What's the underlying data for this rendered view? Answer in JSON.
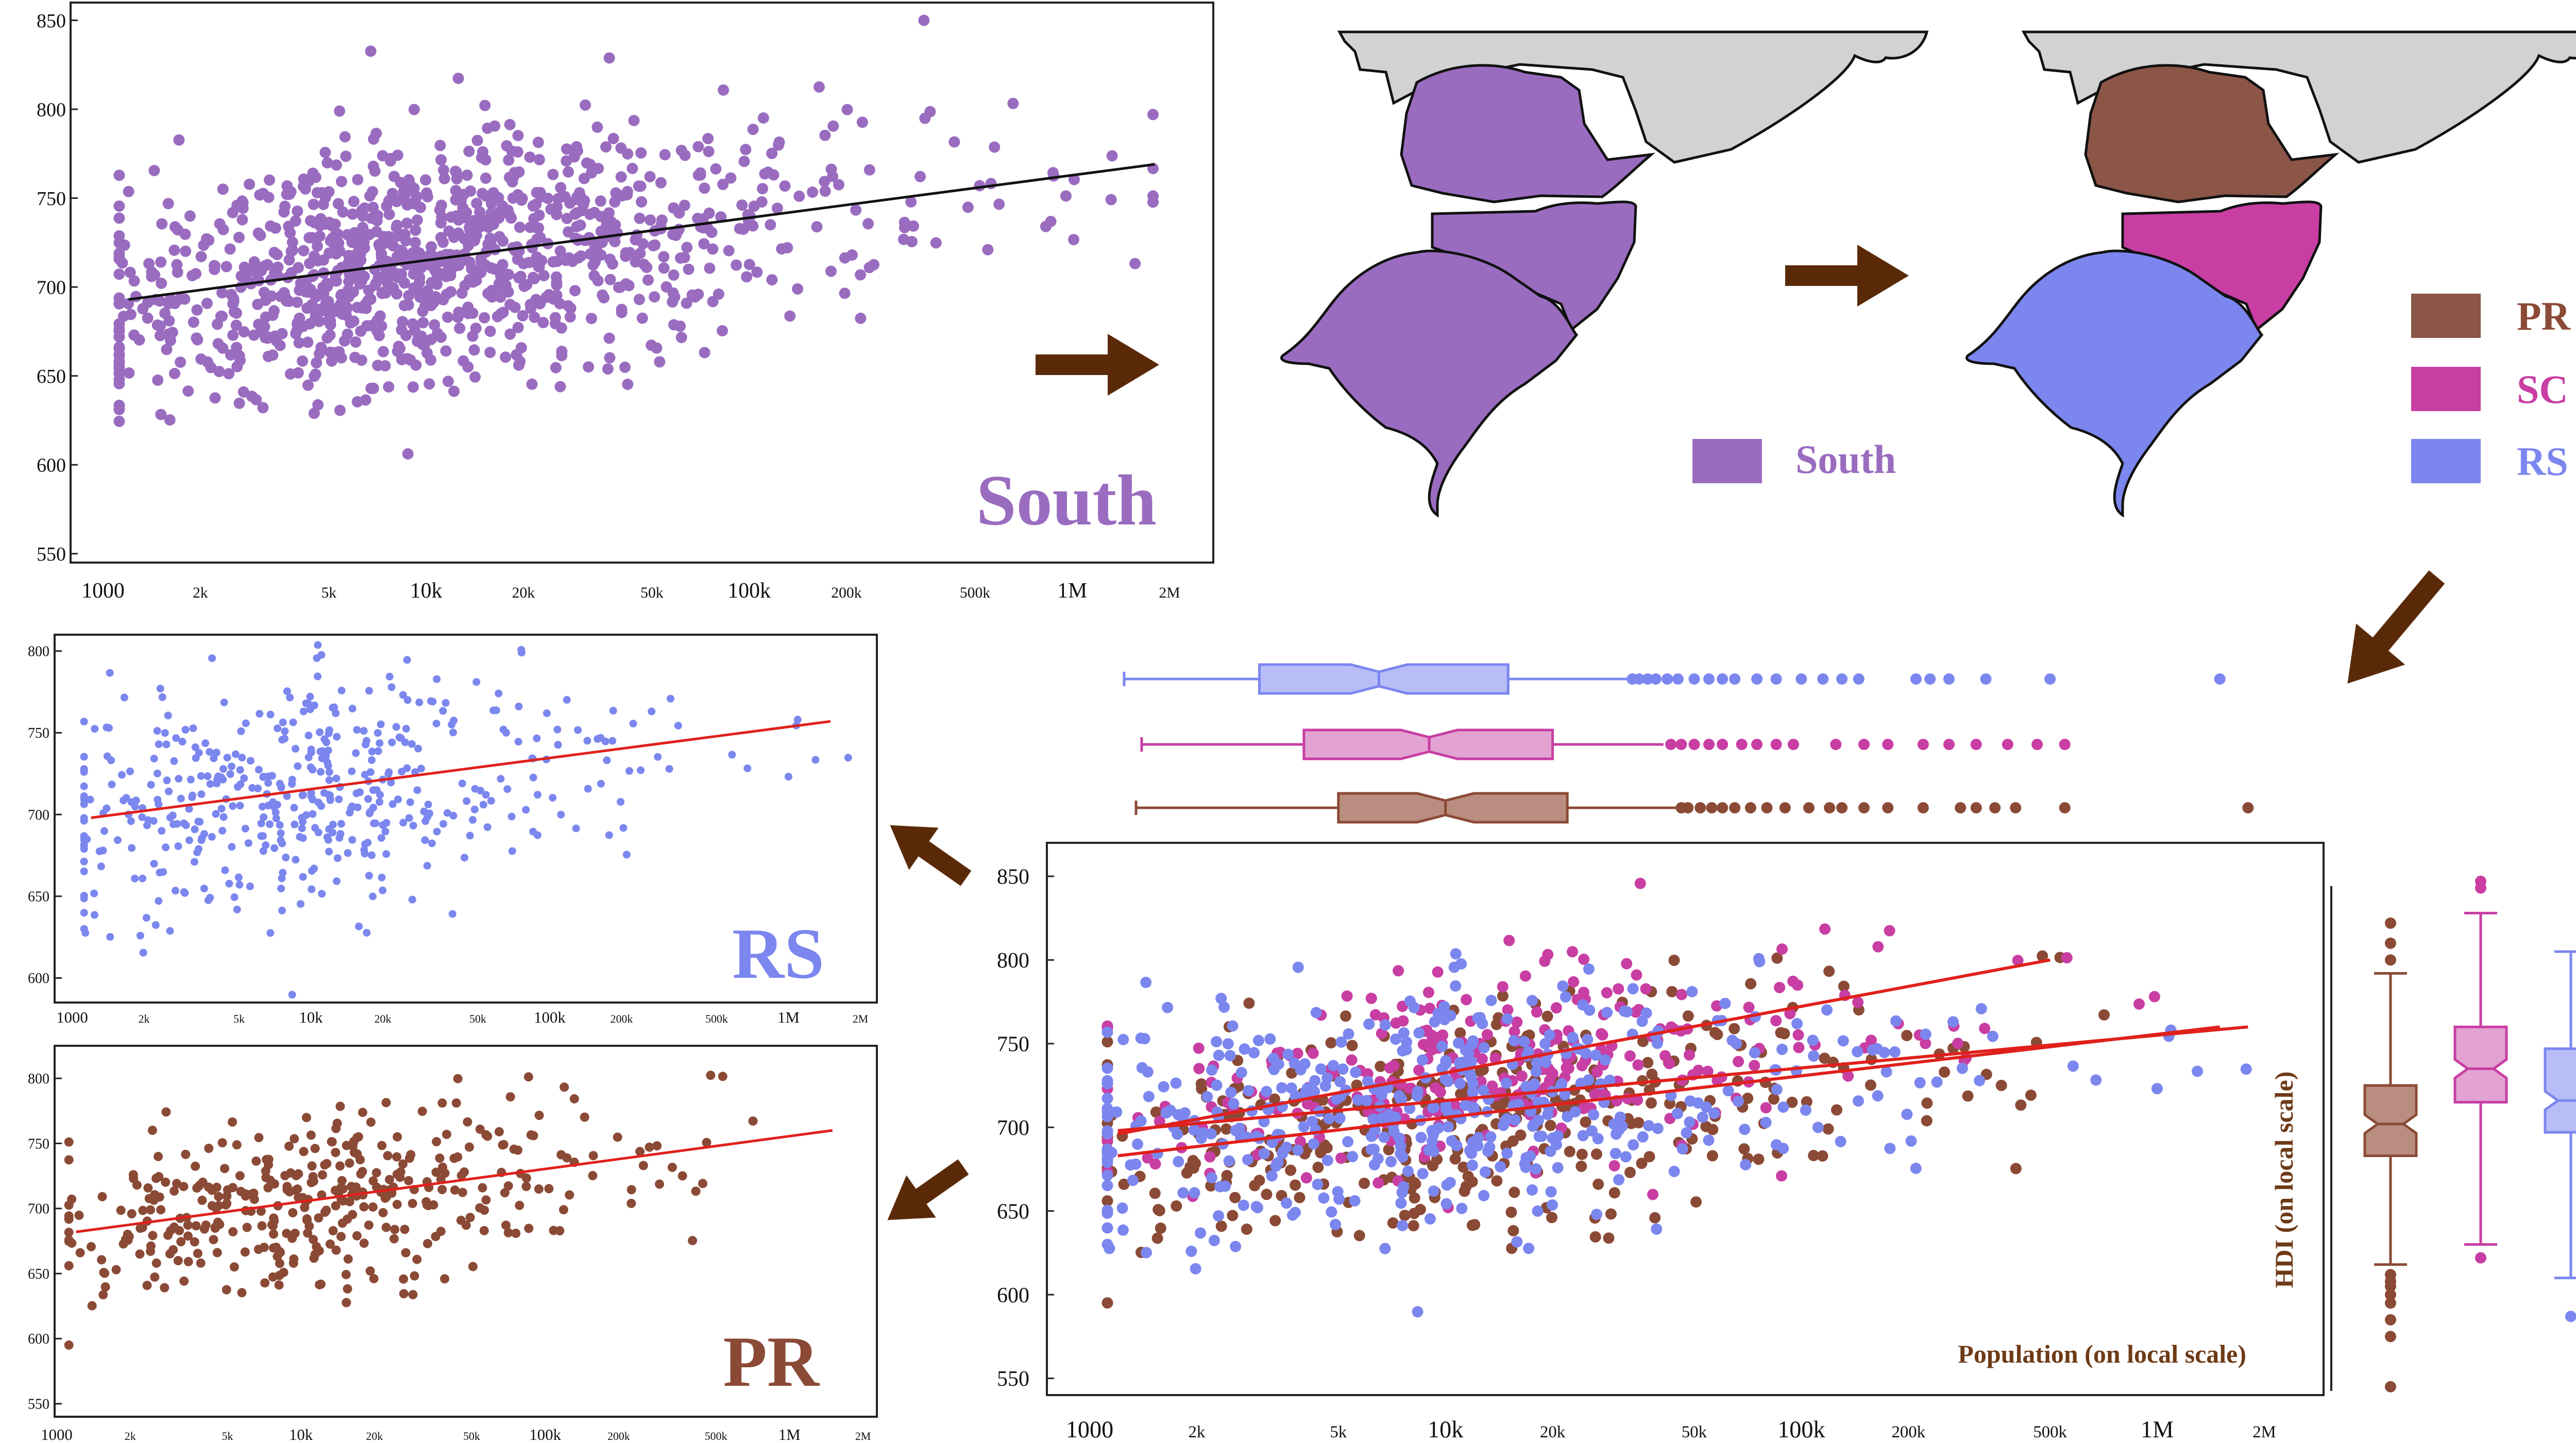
{
  "colors": {
    "south": "#9a6cc0",
    "pr": "#8b4a36",
    "pr_fill": "#b98d7f",
    "sc": "#c83ea3",
    "sc_fill": "#e2a3d2",
    "rs": "#7b86ee",
    "rs_fill": "#b9bdf7",
    "black_fit": "#111111",
    "red_fit": "#e0201b",
    "arrow": "#5a2a08",
    "map_gray": "#d2d2d2"
  },
  "x_ticks": [
    "1000",
    "2k",
    "5k",
    "10k",
    "20k",
    "50k",
    "100k",
    "200k",
    "500k",
    "1M",
    "2M"
  ],
  "x_tick_values": [
    1000,
    2000,
    5000,
    10000,
    20000,
    50000,
    100000,
    200000,
    500000,
    1000000,
    2000000
  ],
  "maps": {
    "south_legend": "South",
    "state_legend": [
      "PR",
      "SC",
      "RS"
    ]
  },
  "chart_data": [
    {
      "id": "south",
      "type": "scatter",
      "title": "South",
      "xscale": "log",
      "xlim": [
        1000,
        2000000
      ],
      "ylim": [
        545,
        860
      ],
      "yticks": [
        550,
        600,
        650,
        700,
        750,
        800,
        850
      ],
      "fit": {
        "x": [
          1200,
          1800000
        ],
        "y": [
          693,
          769
        ]
      },
      "series": [
        {
          "color": "south",
          "cloud": {
            "seed": 11,
            "n": 1100,
            "x_center": 9000,
            "y_center": 712,
            "y_sd": 33,
            "slope": 24
          }
        }
      ]
    },
    {
      "id": "rs",
      "type": "scatter",
      "title": "RS",
      "xscale": "log",
      "xlim": [
        1000,
        2000000
      ],
      "ylim": [
        585,
        810
      ],
      "yticks": [
        600,
        650,
        700,
        750,
        800
      ],
      "fit": {
        "x": [
          1200,
          1500000
        ],
        "y": [
          698,
          757
        ]
      },
      "series": [
        {
          "color": "rs",
          "cloud": {
            "seed": 23,
            "n": 480,
            "x_center": 7000,
            "y_center": 712,
            "y_sd": 34,
            "slope": 18
          }
        }
      ]
    },
    {
      "id": "pr",
      "type": "scatter",
      "title": "PR",
      "xscale": "log",
      "xlim": [
        1000,
        2000000
      ],
      "ylim": [
        540,
        825
      ],
      "yticks": [
        550,
        600,
        650,
        700,
        750,
        800
      ],
      "fit": {
        "x": [
          1200,
          1500000
        ],
        "y": [
          682,
          760
        ]
      },
      "series": [
        {
          "color": "pr",
          "cloud": {
            "seed": 37,
            "n": 390,
            "x_center": 9500,
            "y_center": 704,
            "y_sd": 34,
            "slope": 26
          }
        }
      ]
    },
    {
      "id": "combined",
      "type": "scatter",
      "xlabel": "Population (on local scale)",
      "ylabel": "HDI (on local scale)",
      "xscale": "log",
      "xlim": [
        1000,
        2000000
      ],
      "ylim": [
        540,
        870
      ],
      "yticks": [
        550,
        600,
        650,
        700,
        750,
        800,
        850
      ],
      "fits": [
        {
          "color": "red_fit",
          "x": [
            1200,
            500000
          ],
          "y": [
            696,
            800
          ]
        },
        {
          "color": "red_fit",
          "x": [
            1200,
            1800000
          ],
          "y": [
            698,
            760
          ]
        },
        {
          "color": "red_fit",
          "x": [
            1200,
            1500000
          ],
          "y": [
            683,
            760
          ]
        }
      ],
      "series": [
        {
          "color": "pr",
          "cloud": {
            "seed": 37,
            "n": 390,
            "x_center": 9500,
            "y_center": 704,
            "y_sd": 34,
            "slope": 26
          }
        },
        {
          "color": "sc",
          "cloud": {
            "seed": 51,
            "n": 290,
            "x_center": 11000,
            "y_center": 733,
            "y_sd": 28,
            "slope": 30
          }
        },
        {
          "color": "rs",
          "cloud": {
            "seed": 23,
            "n": 480,
            "x_center": 7000,
            "y_center": 712,
            "y_sd": 34,
            "slope": 18
          }
        }
      ]
    },
    {
      "id": "population_boxplots",
      "type": "box",
      "orientation": "horizontal",
      "xscale": "log",
      "boxes": [
        {
          "color": "rs",
          "whisker_low": 1250,
          "q1": 3000,
          "median": 6500,
          "q3": 15000,
          "whisker_high": 33000,
          "outliers": [
            33500,
            35000,
            37000,
            39000,
            42000,
            45000,
            50000,
            55000,
            60000,
            65000,
            75000,
            85000,
            100000,
            115000,
            130000,
            145000,
            210000,
            230000,
            260000,
            330000,
            500000,
            1500000
          ]
        },
        {
          "color": "sc",
          "whisker_low": 1400,
          "q1": 4000,
          "median": 9000,
          "q3": 20000,
          "whisker_high": 41000,
          "outliers": [
            43000,
            46000,
            50000,
            55000,
            60000,
            68000,
            75000,
            85000,
            95000,
            125000,
            150000,
            175000,
            220000,
            260000,
            310000,
            380000,
            460000,
            550000
          ]
        },
        {
          "color": "pr",
          "whisker_low": 1350,
          "q1": 5000,
          "median": 10000,
          "q3": 22000,
          "whisker_high": 45000,
          "outliers": [
            46000,
            48000,
            52000,
            56000,
            60000,
            65000,
            72000,
            80000,
            90000,
            105000,
            120000,
            130000,
            150000,
            175000,
            220000,
            280000,
            310000,
            350000,
            400000,
            550000,
            1800000
          ]
        }
      ]
    },
    {
      "id": "hdi_boxplots",
      "type": "box",
      "orientation": "vertical",
      "boxes": [
        {
          "color": "pr",
          "whisker_low": 618,
          "q1": 683,
          "median": 702,
          "q3": 725,
          "whisker_high": 792,
          "outliers": [
            545,
            575,
            585,
            595,
            600,
            605,
            608,
            612,
            800,
            810,
            822
          ]
        },
        {
          "color": "sc",
          "whisker_low": 630,
          "q1": 715,
          "median": 735,
          "q3": 760,
          "whisker_high": 828,
          "outliers": [
            622,
            843,
            847
          ]
        },
        {
          "color": "rs",
          "whisker_low": 610,
          "q1": 697,
          "median": 716,
          "q3": 747,
          "whisker_high": 805,
          "outliers": [
            587
          ]
        }
      ]
    }
  ]
}
